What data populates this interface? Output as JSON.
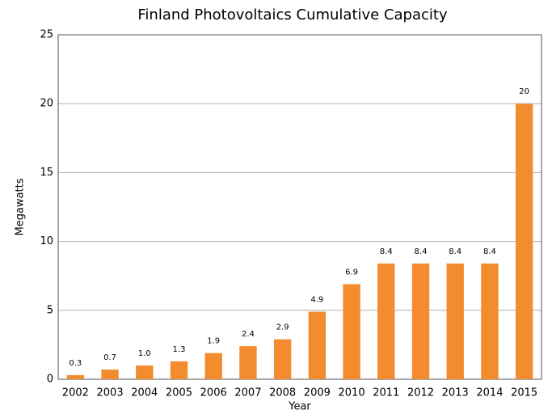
{
  "chart_data": {
    "type": "bar",
    "title": "Finland Photovoltaics Cumulative Capacity",
    "x_label": "Year",
    "y_label": "Megawatts",
    "categories": [
      "2002",
      "2003",
      "2004",
      "2005",
      "2006",
      "2007",
      "2008",
      "2009",
      "2010",
      "2011",
      "2012",
      "2013",
      "2014",
      "2015"
    ],
    "values": [
      0.3,
      0.7,
      1,
      1.3,
      1.9,
      2.4,
      2.9,
      4.9,
      6.9,
      8.4,
      8.4,
      8.4,
      8.4,
      20
    ],
    "value_labels": [
      "0.3",
      "0.7",
      "1.0",
      "1.3",
      "1.9",
      "2.4",
      "2.9",
      "4.9",
      "6.9",
      "8.4",
      "8.4",
      "8.4",
      "8.4",
      "20"
    ],
    "color": "#f28c2e",
    "ylim": [
      0,
      25
    ],
    "yticks": [
      0,
      5,
      10,
      15,
      20,
      25
    ],
    "grid": true
  }
}
